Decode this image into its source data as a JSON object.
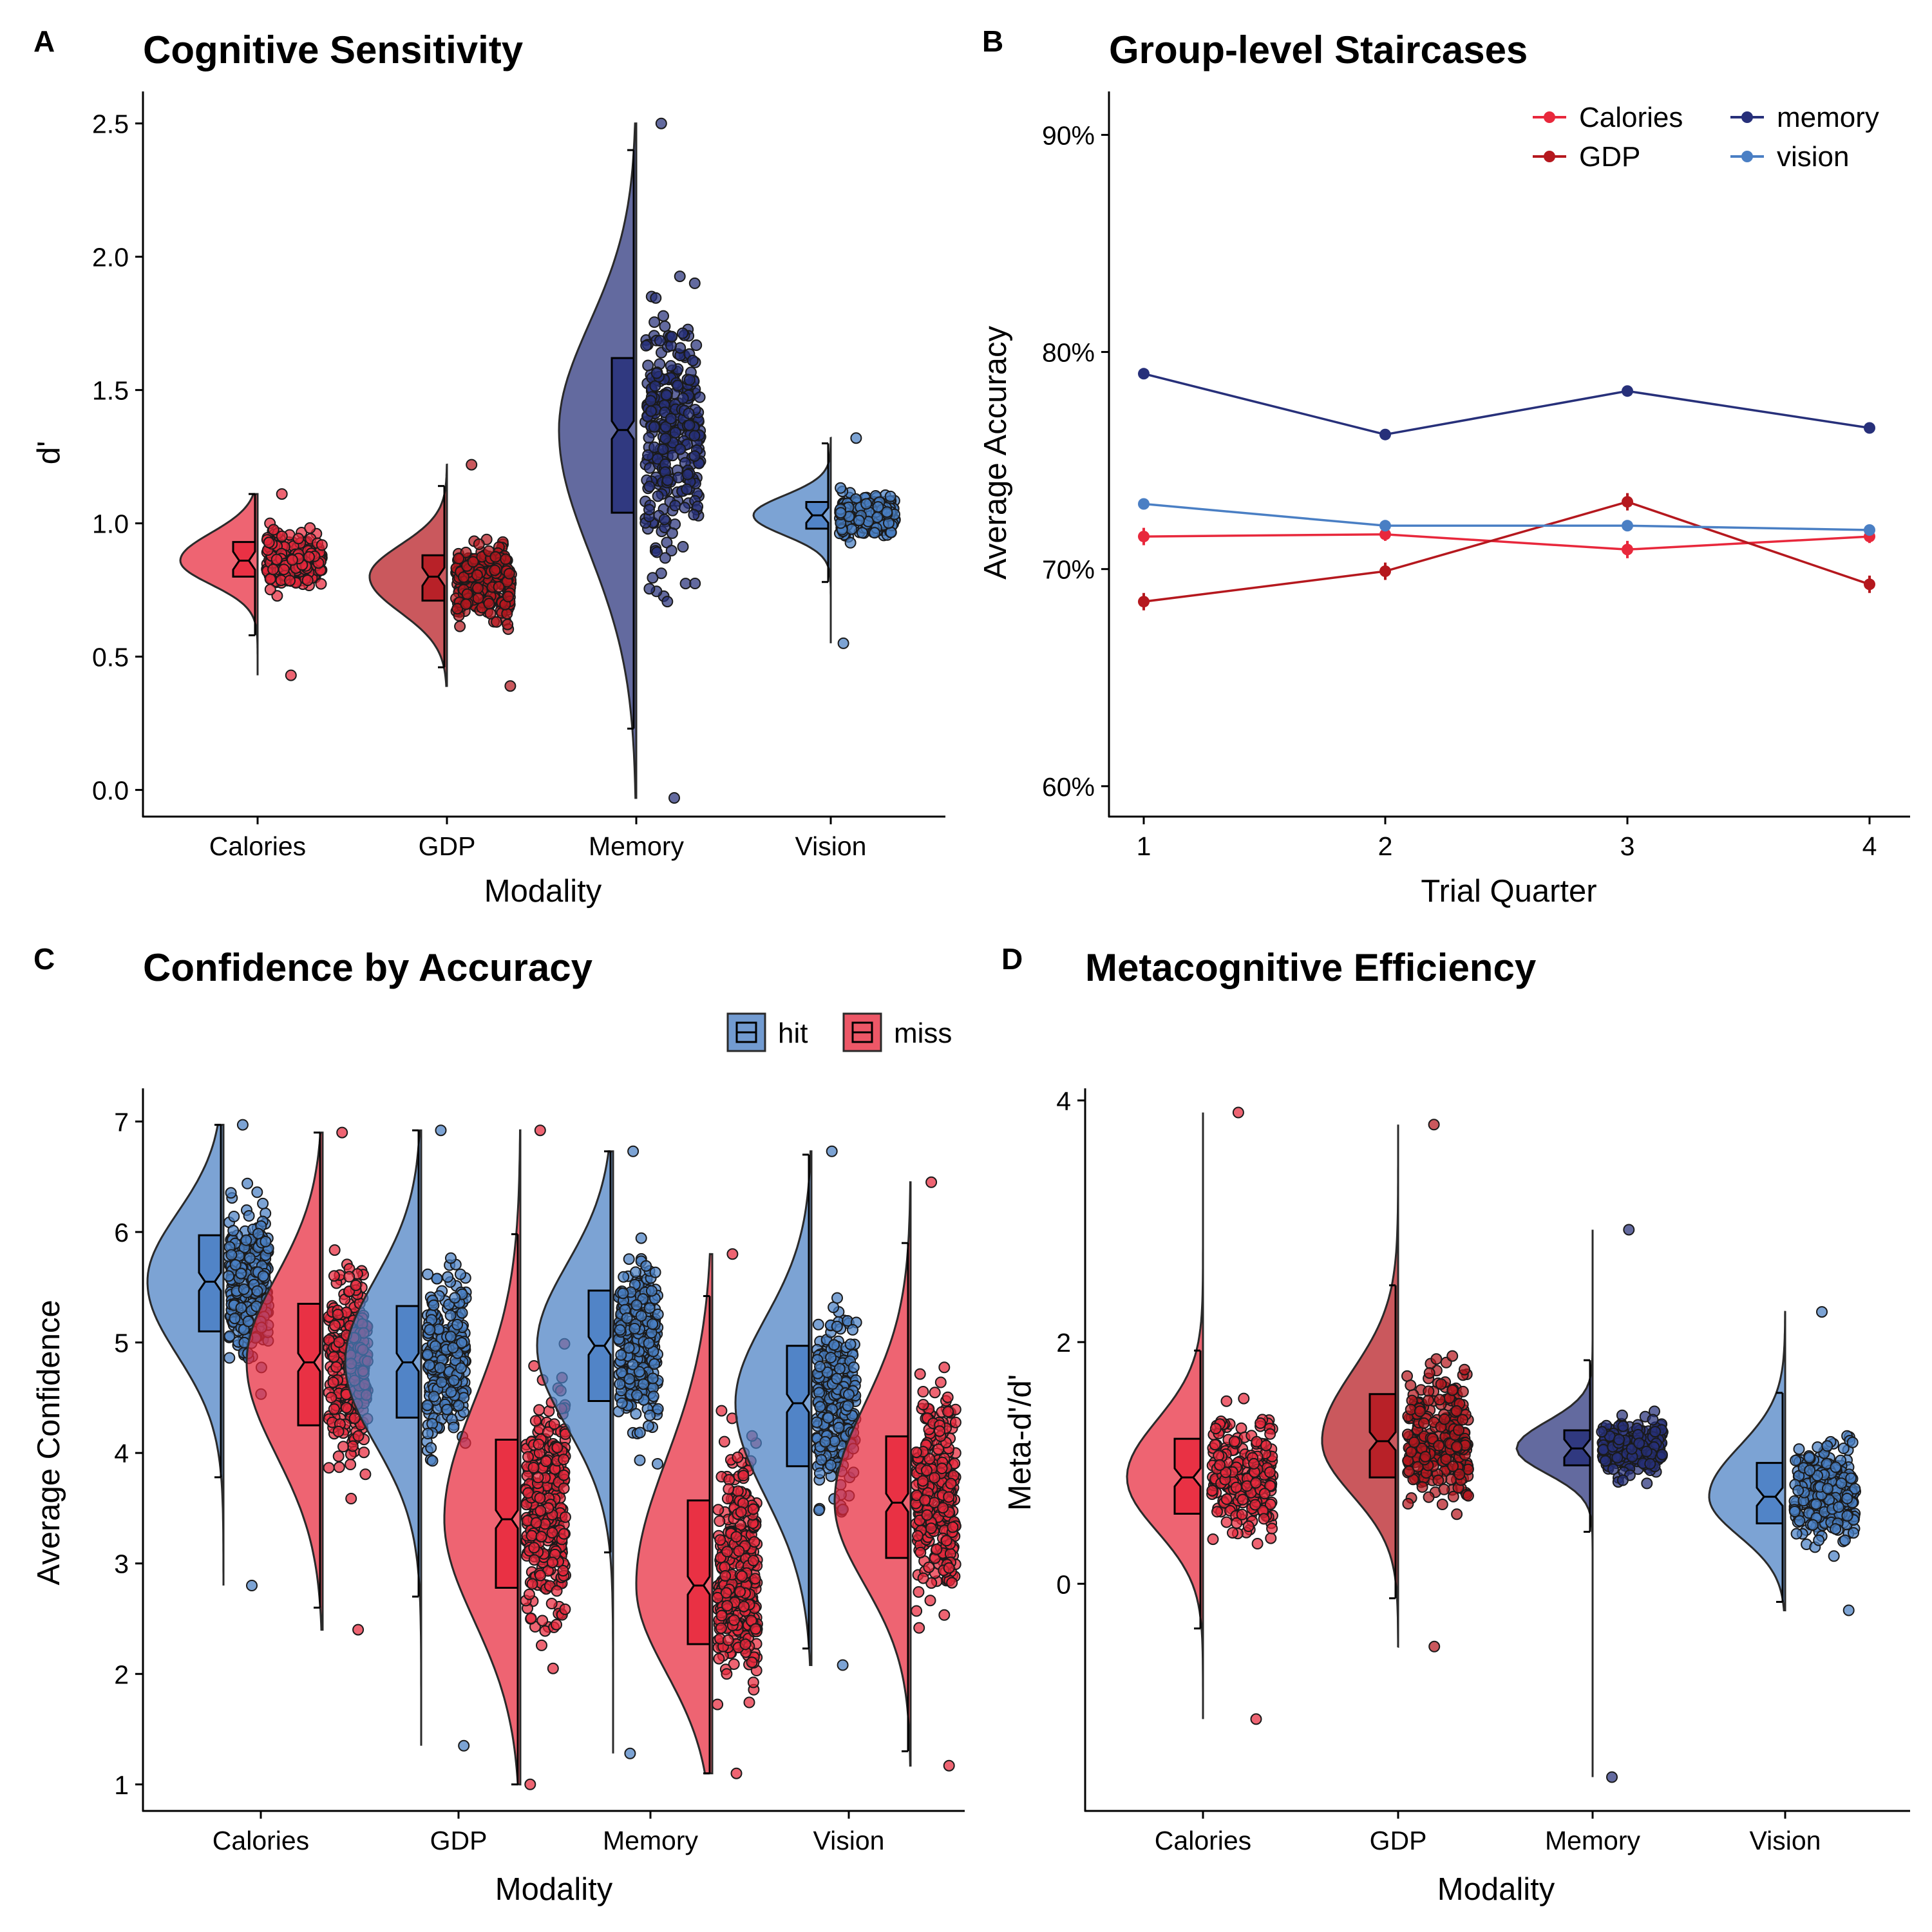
{
  "panels": {
    "A": {
      "label": "A"
    },
    "B": {
      "label": "B"
    },
    "C": {
      "label": "C"
    },
    "D": {
      "label": "D"
    }
  },
  "colors": {
    "Calories": "#E8283C",
    "GDP": "#B5181E",
    "Memory": "#27307A",
    "Vision": "#4A7FC4",
    "hit": "#4A7FC4",
    "miss": "#E8283C"
  },
  "chart_data": [
    {
      "id": "A",
      "type": "raincloud",
      "title": "Cognitive Sensitivity",
      "xlabel": "Modality",
      "ylabel": "d'",
      "categories": [
        "Calories",
        "GDP",
        "Memory",
        "Vision"
      ],
      "ylim": [
        -0.1,
        2.62
      ],
      "yticks": [
        0.0,
        0.5,
        1.0,
        1.5,
        2.0,
        2.5
      ],
      "ytick_labels": [
        "0.0",
        "0.5",
        "1.0",
        "1.5",
        "2.0",
        "2.5"
      ],
      "distribution": "density",
      "groups": [
        {
          "name": "Calories",
          "min": 0.43,
          "q1": 0.8,
          "median": 0.86,
          "q3": 0.93,
          "max": 1.11,
          "whisker_low": 0.58,
          "whisker_high": 1.11,
          "n_points": 250
        },
        {
          "name": "GDP",
          "min": 0.39,
          "q1": 0.71,
          "median": 0.8,
          "q3": 0.88,
          "max": 1.22,
          "whisker_low": 0.46,
          "whisker_high": 1.14,
          "n_points": 300
        },
        {
          "name": "Memory",
          "min": -0.03,
          "q1": 1.04,
          "median": 1.35,
          "q3": 1.62,
          "max": 2.5,
          "whisker_low": 0.23,
          "whisker_high": 2.4,
          "n_points": 300
        },
        {
          "name": "Vision",
          "min": 0.55,
          "q1": 0.98,
          "median": 1.03,
          "q3": 1.08,
          "max": 1.32,
          "whisker_low": 0.78,
          "whisker_high": 1.3,
          "n_points": 260
        }
      ]
    },
    {
      "id": "B",
      "type": "line",
      "title": "Group-level Staircases",
      "xlabel": "Trial Quarter",
      "ylabel": "Average Accuracy",
      "x": [
        1,
        2,
        3,
        4
      ],
      "xticks": [
        "1",
        "2",
        "3",
        "4"
      ],
      "ylim": [
        58.6,
        92.0
      ],
      "yticks": [
        60,
        70,
        80,
        90
      ],
      "ytick_labels": [
        "60%",
        "70%",
        "80%",
        "90%"
      ],
      "legend": {
        "position": "top-right",
        "entries": [
          "Calories",
          "GDP",
          "memory",
          "vision"
        ]
      },
      "series": [
        {
          "name": "Calories",
          "values": [
            71.5,
            71.6,
            70.9,
            71.5
          ],
          "error": [
            0.4,
            0.3,
            0.4,
            0.3
          ]
        },
        {
          "name": "GDP",
          "values": [
            68.5,
            69.9,
            73.1,
            69.3
          ],
          "error": [
            0.4,
            0.4,
            0.4,
            0.4
          ]
        },
        {
          "name": "memory",
          "values": [
            79.0,
            76.2,
            78.2,
            76.5
          ],
          "error": [
            0.2,
            0.2,
            0.2,
            0.2
          ]
        },
        {
          "name": "vision",
          "values": [
            73.0,
            72.0,
            72.0,
            71.8
          ],
          "error": [
            0.2,
            0.2,
            0.2,
            0.2
          ]
        }
      ]
    },
    {
      "id": "C",
      "type": "raincloud",
      "title": "Confidence by Accuracy",
      "xlabel": "Modality",
      "ylabel": "Average Confidence",
      "categories": [
        "Calories",
        "GDP",
        "Memory",
        "Vision"
      ],
      "ylim": [
        0.76,
        7.3
      ],
      "yticks": [
        1,
        2,
        3,
        4,
        5,
        6,
        7
      ],
      "ytick_labels": [
        "1",
        "2",
        "3",
        "4",
        "5",
        "6",
        "7"
      ],
      "legend": {
        "position": "top-right",
        "entries": [
          "hit",
          "miss"
        ]
      },
      "groups": [
        {
          "name": "Calories",
          "series": "hit",
          "min": 2.8,
          "q1": 5.1,
          "median": 5.55,
          "q3": 5.97,
          "max": 6.97,
          "whisker_low": 3.78,
          "whisker_high": 6.97,
          "n_points": 280
        },
        {
          "name": "Calories",
          "series": "miss",
          "min": 2.4,
          "q1": 4.25,
          "median": 4.82,
          "q3": 5.35,
          "max": 6.9,
          "whisker_low": 2.6,
          "whisker_high": 6.9,
          "n_points": 280
        },
        {
          "name": "GDP",
          "series": "hit",
          "min": 1.35,
          "q1": 4.32,
          "median": 4.82,
          "q3": 5.33,
          "max": 6.92,
          "whisker_low": 2.7,
          "whisker_high": 6.92,
          "n_points": 280
        },
        {
          "name": "GDP",
          "series": "miss",
          "min": 1.0,
          "q1": 2.78,
          "median": 3.4,
          "q3": 4.12,
          "max": 6.92,
          "whisker_low": 1.0,
          "whisker_high": 5.98,
          "n_points": 320
        },
        {
          "name": "Memory",
          "series": "hit",
          "min": 1.28,
          "q1": 4.47,
          "median": 4.97,
          "q3": 5.47,
          "max": 6.73,
          "whisker_low": 3.1,
          "whisker_high": 6.73,
          "n_points": 280
        },
        {
          "name": "Memory",
          "series": "miss",
          "min": 1.1,
          "q1": 2.27,
          "median": 2.8,
          "q3": 3.57,
          "max": 5.8,
          "whisker_low": 1.1,
          "whisker_high": 5.42,
          "n_points": 320
        },
        {
          "name": "Vision",
          "series": "hit",
          "min": 2.08,
          "q1": 3.88,
          "median": 4.45,
          "q3": 4.97,
          "max": 6.73,
          "whisker_low": 2.23,
          "whisker_high": 6.7,
          "n_points": 280
        },
        {
          "name": "Vision",
          "series": "miss",
          "min": 1.17,
          "q1": 3.05,
          "median": 3.55,
          "q3": 4.15,
          "max": 6.45,
          "whisker_low": 1.3,
          "whisker_high": 5.9,
          "n_points": 320
        }
      ]
    },
    {
      "id": "D",
      "type": "raincloud",
      "title": "Metacognitive Efficiency",
      "xlabel": "Modality",
      "ylabel": "Meta-d'/d'",
      "categories": [
        "Calories",
        "GDP",
        "Memory",
        "Vision"
      ],
      "ylim": [
        -1.88,
        4.1
      ],
      "yticks": [
        0,
        2,
        4
      ],
      "ytick_labels": [
        "0",
        "2",
        "4"
      ],
      "groups": [
        {
          "name": "Calories",
          "min": -1.12,
          "q1": 0.58,
          "median": 0.88,
          "q3": 1.2,
          "max": 3.9,
          "whisker_low": -0.37,
          "whisker_high": 1.93,
          "n_points": 230
        },
        {
          "name": "GDP",
          "min": -0.52,
          "q1": 0.88,
          "median": 1.18,
          "q3": 1.57,
          "max": 3.8,
          "whisker_low": -0.12,
          "whisker_high": 2.47,
          "n_points": 280
        },
        {
          "name": "Memory",
          "min": -1.6,
          "q1": 0.98,
          "median": 1.12,
          "q3": 1.27,
          "max": 2.93,
          "whisker_low": 0.43,
          "whisker_high": 1.85,
          "n_points": 230
        },
        {
          "name": "Vision",
          "min": -0.22,
          "q1": 0.5,
          "median": 0.72,
          "q3": 1.0,
          "max": 2.25,
          "whisker_low": -0.15,
          "whisker_high": 1.58,
          "n_points": 250
        }
      ]
    }
  ]
}
